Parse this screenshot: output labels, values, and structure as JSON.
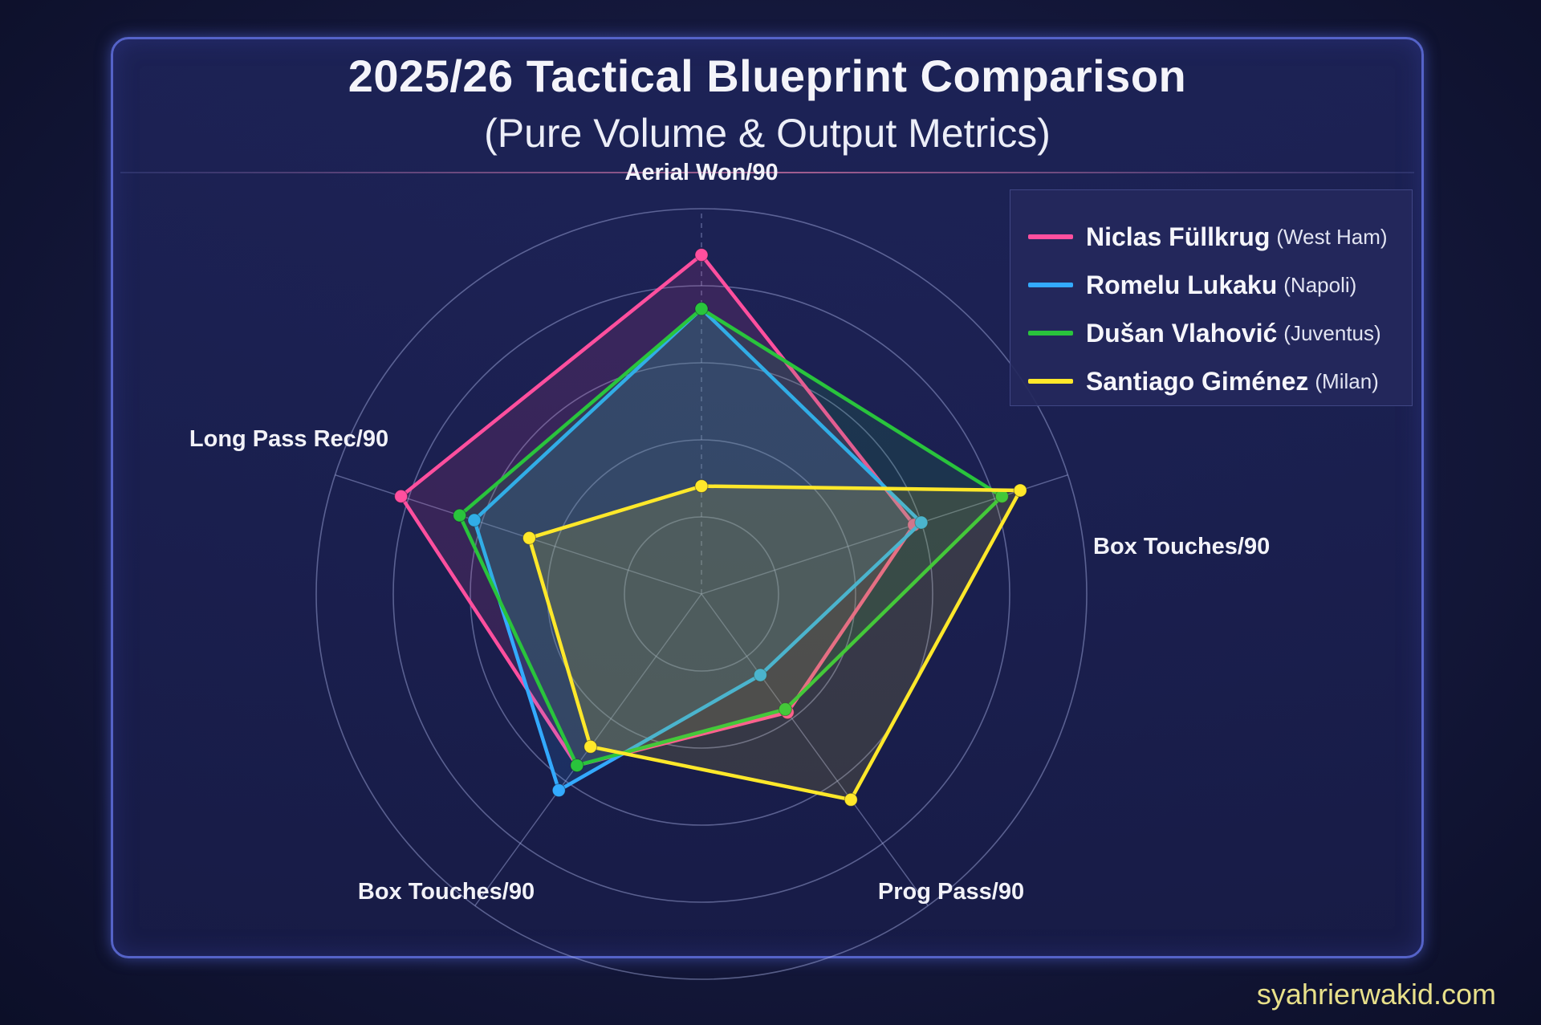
{
  "title": "2025/26 Tactical Blueprint Comparison",
  "subtitle": "(Pure Volume & Output Metrics)",
  "watermark": "syahrierwakid.com",
  "chart_data": {
    "type": "radar",
    "title": "2025/26 Tactical Blueprint Comparison",
    "subtitle": "(Pure Volume & Output Metrics)",
    "axes": [
      "Aerial Won/90",
      "Box Touches/90",
      "Prog Pass/90",
      "Box Touches/90",
      "Long Pass Rec/90"
    ],
    "grid": true,
    "legend_position": "top-right",
    "series": [
      {
        "name": "Niclas Füllkrug",
        "team": "(West Ham)",
        "color": "#ff4f9e",
        "values": [
          0.88,
          0.58,
          0.38,
          0.55,
          0.82
        ]
      },
      {
        "name": "Romelu Lukaku",
        "team": "(Napoli)",
        "color": "#33aaff",
        "values": [
          0.74,
          0.6,
          0.26,
          0.63,
          0.62
        ]
      },
      {
        "name": "Dušan Vlahović",
        "team": "(Juventus)",
        "color": "#29c43c",
        "values": [
          0.74,
          0.82,
          0.37,
          0.55,
          0.66
        ]
      },
      {
        "name": "Santiago Giménez",
        "team": "(Milan)",
        "color": "#ffe82a",
        "values": [
          0.28,
          0.87,
          0.66,
          0.49,
          0.47
        ]
      }
    ]
  }
}
